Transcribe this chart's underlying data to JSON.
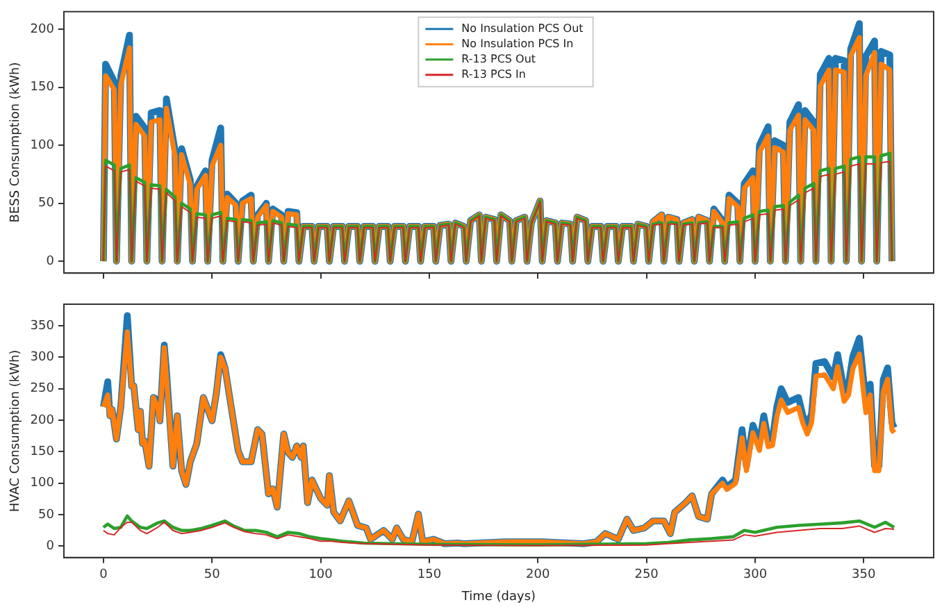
{
  "chart_data": [
    {
      "type": "line",
      "ylabel": "BESS Consumption (kWh)",
      "legend": "top",
      "tick_labels": "y",
      "xlim": [
        -18.2,
        382.2
      ],
      "xticks": [
        0,
        50,
        100,
        150,
        200,
        250,
        300,
        350
      ],
      "ylim": [
        -10.25,
        215.25
      ],
      "yticks": [
        0,
        50,
        100,
        150,
        200
      ],
      "x": [
        0,
        1,
        5,
        6,
        8,
        12,
        13,
        15,
        19,
        20,
        22,
        26,
        27,
        29,
        33,
        34,
        36,
        40,
        41,
        43,
        47,
        48,
        50,
        54,
        55,
        57,
        61,
        62,
        64,
        68,
        69,
        71,
        75,
        76,
        78,
        82,
        83,
        85,
        89,
        90,
        92,
        96,
        97,
        99,
        103,
        104,
        106,
        110,
        111,
        113,
        117,
        118,
        120,
        124,
        125,
        127,
        131,
        132,
        134,
        138,
        139,
        141,
        145,
        146,
        148,
        152,
        153,
        155,
        159,
        160,
        162,
        166,
        167,
        169,
        173,
        174,
        176,
        180,
        181,
        183,
        187,
        188,
        190,
        194,
        195,
        197,
        201,
        202,
        204,
        208,
        209,
        211,
        215,
        216,
        218,
        222,
        223,
        225,
        229,
        230,
        232,
        236,
        237,
        239,
        243,
        244,
        246,
        250,
        251,
        253,
        257,
        258,
        260,
        264,
        265,
        267,
        271,
        272,
        274,
        278,
        279,
        281,
        285,
        286,
        288,
        292,
        293,
        295,
        299,
        300,
        302,
        306,
        307,
        309,
        313,
        314,
        316,
        320,
        321,
        323,
        327,
        328,
        330,
        334,
        335,
        337,
        341,
        342,
        344,
        348,
        349,
        351,
        355,
        356,
        358,
        362,
        363
      ],
      "series": [
        {
          "name": "No Insulation PCS Out",
          "color": "#1f77b4",
          "values": [
            0,
            170,
            155,
            0,
            160,
            195,
            0,
            125,
            115,
            0,
            128,
            130,
            0,
            140,
            95,
            0,
            97,
            70,
            0,
            65,
            78,
            0,
            87,
            115,
            0,
            58,
            50,
            0,
            52,
            57,
            0,
            40,
            50,
            0,
            45,
            40,
            0,
            43,
            42,
            0,
            30,
            30,
            0,
            30,
            30,
            0,
            30,
            30,
            0,
            30,
            30,
            0,
            30,
            30,
            0,
            30,
            30,
            0,
            30,
            30,
            0,
            30,
            30,
            0,
            30,
            30,
            0,
            31,
            32,
            0,
            33,
            30,
            0,
            35,
            40,
            0,
            38,
            36,
            0,
            40,
            35,
            0,
            35,
            38,
            0,
            33,
            52,
            0,
            35,
            33,
            0,
            33,
            32,
            0,
            38,
            35,
            0,
            30,
            30,
            0,
            30,
            30,
            0,
            30,
            30,
            0,
            32,
            30,
            0,
            34,
            40,
            0,
            38,
            36,
            0,
            33,
            36,
            0,
            38,
            35,
            0,
            45,
            35,
            0,
            57,
            50,
            0,
            67,
            78,
            0,
            100,
            116,
            0,
            104,
            100,
            0,
            120,
            135,
            0,
            130,
            120,
            0,
            161,
            175,
            0,
            175,
            173,
            0,
            183,
            205,
            0,
            177,
            190,
            0,
            181,
            178,
            0
          ]
        },
        {
          "name": "No Insulation PCS In",
          "color": "#ff7f0e",
          "values": [
            0,
            160,
            148,
            0,
            152,
            184,
            0,
            118,
            108,
            0,
            120,
            122,
            0,
            132,
            90,
            0,
            92,
            66,
            0,
            62,
            74,
            0,
            82,
            100,
            0,
            55,
            48,
            0,
            50,
            54,
            0,
            38,
            48,
            0,
            43,
            38,
            0,
            41,
            40,
            0,
            30,
            30,
            0,
            30,
            30,
            0,
            30,
            30,
            0,
            30,
            30,
            0,
            30,
            30,
            0,
            30,
            30,
            0,
            30,
            30,
            0,
            30,
            30,
            0,
            30,
            30,
            0,
            31,
            32,
            0,
            33,
            30,
            0,
            35,
            40,
            0,
            38,
            36,
            0,
            40,
            35,
            0,
            35,
            38,
            0,
            33,
            52,
            0,
            35,
            33,
            0,
            33,
            32,
            0,
            38,
            35,
            0,
            30,
            30,
            0,
            30,
            30,
            0,
            30,
            30,
            0,
            32,
            30,
            0,
            34,
            40,
            0,
            38,
            36,
            0,
            33,
            36,
            0,
            38,
            35,
            0,
            43,
            33,
            0,
            54,
            47,
            0,
            63,
            72,
            0,
            94,
            108,
            0,
            98,
            94,
            0,
            113,
            126,
            0,
            122,
            113,
            0,
            151,
            165,
            0,
            165,
            163,
            0,
            177,
            193,
            0,
            160,
            180,
            0,
            170,
            165,
            0
          ]
        },
        {
          "name": "R-13 PCS Out",
          "color": "#2ca02c",
          "values": [
            0,
            87,
            83,
            0,
            80,
            83,
            0,
            72,
            68,
            0,
            66,
            65,
            0,
            62,
            55,
            0,
            50,
            45,
            0,
            41,
            40,
            0,
            40,
            42,
            0,
            37,
            36,
            0,
            36,
            35,
            0,
            33,
            34,
            0,
            35,
            33,
            0,
            32,
            31,
            0,
            30,
            30,
            0,
            30,
            30,
            0,
            30,
            30,
            0,
            30,
            30,
            0,
            30,
            30,
            0,
            30,
            30,
            0,
            30,
            30,
            0,
            30,
            30,
            0,
            30,
            30,
            0,
            31,
            32,
            0,
            33,
            30,
            0,
            35,
            40,
            0,
            38,
            36,
            0,
            40,
            35,
            0,
            35,
            38,
            0,
            33,
            52,
            0,
            35,
            33,
            0,
            33,
            32,
            0,
            38,
            35,
            0,
            30,
            30,
            0,
            30,
            30,
            0,
            30,
            30,
            0,
            32,
            30,
            0,
            32,
            33,
            0,
            33,
            33,
            0,
            32,
            33,
            0,
            33,
            34,
            0,
            30,
            30,
            0,
            33,
            34,
            0,
            37,
            40,
            0,
            43,
            44,
            0,
            47,
            48,
            0,
            51,
            57,
            0,
            63,
            67,
            0,
            78,
            80,
            0,
            80,
            82,
            0,
            88,
            90,
            0,
            90,
            90,
            0,
            91,
            93,
            0
          ]
        },
        {
          "name": "R-13 PCS In",
          "color": "#d62728",
          "values": [
            0,
            82,
            78,
            0,
            77,
            79,
            0,
            69,
            65,
            0,
            63,
            62,
            0,
            59,
            52,
            0,
            47,
            42,
            0,
            38,
            37,
            0,
            37,
            39,
            0,
            35,
            34,
            0,
            34,
            33,
            0,
            31,
            32,
            0,
            33,
            31,
            0,
            30,
            29,
            0,
            29,
            29,
            0,
            29,
            29,
            0,
            29,
            29,
            0,
            29,
            29,
            0,
            29,
            29,
            0,
            29,
            29,
            0,
            29,
            29,
            0,
            29,
            29,
            0,
            29,
            29,
            0,
            30,
            31,
            0,
            32,
            29,
            0,
            34,
            39,
            0,
            37,
            35,
            0,
            39,
            34,
            0,
            34,
            37,
            0,
            32,
            51,
            0,
            34,
            32,
            0,
            32,
            31,
            0,
            37,
            34,
            0,
            29,
            29,
            0,
            29,
            29,
            0,
            29,
            29,
            0,
            31,
            29,
            0,
            31,
            32,
            0,
            32,
            32,
            0,
            31,
            32,
            0,
            32,
            33,
            0,
            29,
            29,
            0,
            31,
            32,
            0,
            34,
            37,
            0,
            40,
            41,
            0,
            44,
            45,
            0,
            48,
            53,
            0,
            59,
            63,
            0,
            73,
            75,
            0,
            75,
            77,
            0,
            82,
            84,
            0,
            84,
            84,
            0,
            85,
            86,
            0
          ]
        }
      ]
    },
    {
      "type": "line",
      "xlabel": "Time (days)",
      "ylabel": "HVAC Consumption (kWh)",
      "xlim": [
        -18.2,
        382.2
      ],
      "xticks": [
        0,
        50,
        100,
        150,
        200,
        250,
        300,
        350
      ],
      "ylim": [
        -18,
        384
      ],
      "yticks": [
        0,
        50,
        100,
        150,
        200,
        250,
        300,
        350
      ],
      "x": [
        0,
        2,
        3,
        4,
        6,
        8,
        11,
        13,
        14,
        16,
        17,
        18,
        19,
        21,
        23,
        25,
        26,
        28,
        29,
        32,
        34,
        36,
        38,
        40,
        43,
        46,
        50,
        52,
        54,
        56,
        59,
        62,
        64,
        68,
        71,
        73,
        76,
        78,
        80,
        83,
        85,
        87,
        89,
        91,
        92,
        94,
        96,
        100,
        103,
        104,
        106,
        109,
        113,
        117,
        121,
        123,
        126,
        129,
        133,
        135,
        138,
        142,
        145,
        147,
        152,
        157,
        163,
        166,
        185,
        202,
        221,
        227,
        231,
        237,
        241,
        244,
        249,
        253,
        258,
        261,
        263,
        268,
        271,
        274,
        278,
        280,
        285,
        287,
        291,
        294,
        296,
        299,
        302,
        304,
        306,
        308,
        310,
        312,
        315,
        320,
        322,
        324,
        326,
        328,
        332,
        336,
        338,
        341,
        343,
        345,
        348,
        351,
        353,
        355,
        357,
        359,
        361,
        363,
        364
      ],
      "series": [
        {
          "color": "#1f77b4",
          "values": [
            221,
            261,
            207,
            217,
            170,
            221,
            366,
            254,
            254,
            185,
            214,
            163,
            167,
            127,
            236,
            232,
            199,
            319,
            279,
            127,
            207,
            120,
            98,
            134,
            163,
            236,
            199,
            243,
            304,
            283,
            217,
            152,
            134,
            134,
            185,
            178,
            83,
            91,
            62,
            178,
            149,
            141,
            159,
            141,
            159,
            69,
            105,
            76,
            65,
            112,
            54,
            40,
            72,
            33,
            29,
            11,
            18,
            25,
            11,
            29,
            11,
            7,
            51,
            7,
            11,
            4,
            5,
            4,
            7,
            7,
            4,
            7,
            20,
            11,
            43,
            25,
            29,
            40,
            40,
            20,
            54,
            69,
            80,
            47,
            43,
            83,
            105,
            94,
            105,
            185,
            127,
            192,
            163,
            207,
            170,
            170,
            221,
            250,
            228,
            236,
            207,
            192,
            210,
            290,
            293,
            268,
            304,
            246,
            257,
            301,
            330,
            228,
            257,
            127,
            127,
            264,
            283,
            196,
            188
          ]
        },
        {
          "color": "#ff7f0e",
          "values": [
            221,
            240,
            207,
            217,
            170,
            221,
            340,
            254,
            254,
            185,
            214,
            163,
            167,
            127,
            236,
            220,
            199,
            315,
            270,
            127,
            207,
            120,
            98,
            134,
            163,
            236,
            199,
            243,
            300,
            283,
            217,
            152,
            134,
            134,
            185,
            178,
            83,
            91,
            62,
            178,
            149,
            141,
            159,
            141,
            159,
            69,
            105,
            76,
            65,
            112,
            54,
            40,
            72,
            33,
            29,
            11,
            18,
            25,
            11,
            29,
            11,
            7,
            51,
            7,
            11,
            4,
            5,
            4,
            7,
            7,
            4,
            7,
            20,
            11,
            43,
            25,
            29,
            40,
            40,
            20,
            54,
            69,
            80,
            47,
            43,
            83,
            100,
            90,
            100,
            172,
            120,
            180,
            152,
            195,
            158,
            160,
            205,
            232,
            212,
            220,
            195,
            178,
            196,
            270,
            272,
            250,
            285,
            230,
            240,
            282,
            305,
            212,
            240,
            120,
            120,
            245,
            265,
            185,
            180
          ]
        },
        {
          "color": "#2ca02c",
          "x": [
            0,
            2,
            5,
            8,
            11,
            13,
            17,
            20,
            25,
            28,
            32,
            36,
            40,
            45,
            50,
            56,
            60,
            65,
            70,
            75,
            80,
            85,
            90,
            95,
            100,
            105,
            110,
            120,
            150,
            200,
            250,
            260,
            270,
            280,
            290,
            295,
            300,
            310,
            320,
            330,
            340,
            348,
            355,
            360,
            364
          ],
          "values": [
            30,
            35,
            28,
            30,
            48,
            40,
            30,
            28,
            37,
            40,
            30,
            25,
            25,
            28,
            33,
            40,
            32,
            25,
            25,
            22,
            15,
            22,
            20,
            15,
            12,
            10,
            8,
            5,
            3,
            2,
            4,
            6,
            10,
            12,
            15,
            25,
            22,
            30,
            33,
            35,
            37,
            40,
            30,
            38,
            30
          ]
        },
        {
          "color": "#d62728",
          "x": [
            0,
            2,
            5,
            8,
            11,
            13,
            17,
            20,
            25,
            28,
            32,
            36,
            40,
            45,
            50,
            56,
            60,
            65,
            70,
            75,
            80,
            85,
            90,
            95,
            100,
            105,
            110,
            120,
            150,
            200,
            250,
            260,
            270,
            280,
            290,
            295,
            300,
            310,
            320,
            330,
            340,
            348,
            355,
            360,
            364
          ],
          "values": [
            25,
            20,
            18,
            30,
            38,
            38,
            25,
            20,
            30,
            38,
            25,
            20,
            22,
            25,
            30,
            37,
            30,
            23,
            20,
            18,
            12,
            18,
            15,
            12,
            8,
            8,
            6,
            4,
            2,
            1,
            2,
            4,
            6,
            8,
            10,
            18,
            16,
            22,
            25,
            28,
            28,
            32,
            22,
            28,
            27
          ]
        }
      ]
    }
  ]
}
